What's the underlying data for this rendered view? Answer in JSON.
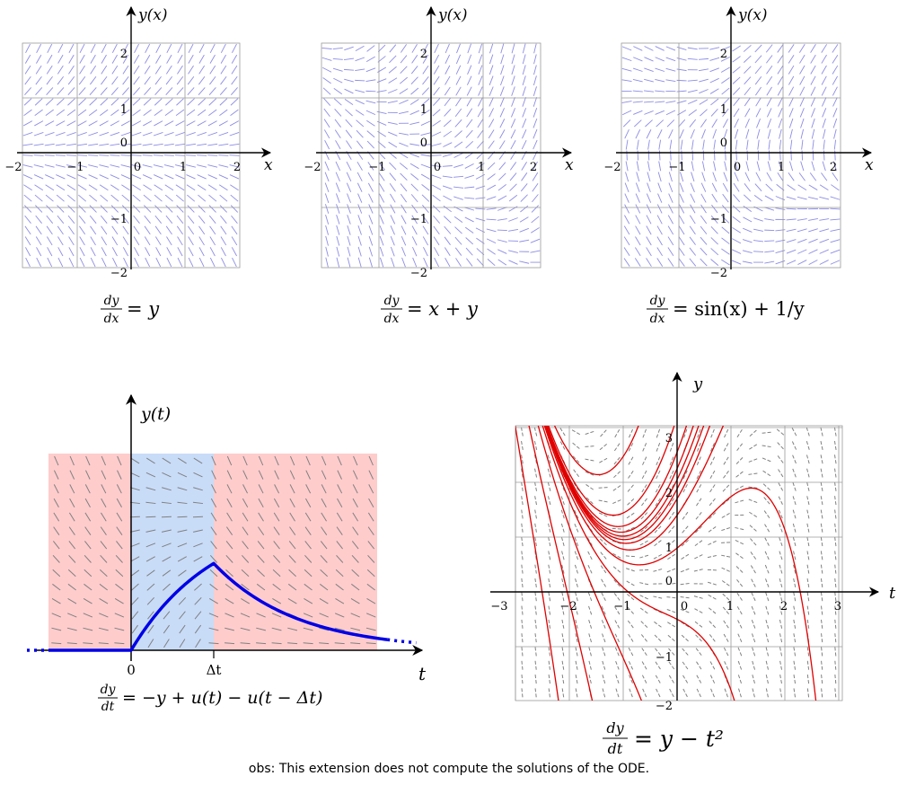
{
  "note": "obs: This extension does not compute the solutions of the ODE.",
  "colors": {
    "slope_blue": "#8c8ce6",
    "grid": "#9a9a9a",
    "slope_gray": "#808080",
    "solution_red": "#e00000",
    "solution_blue": "#0000e6",
    "shade_red": "#ffcccc",
    "shade_blue": "#c8dcf8"
  },
  "panels": [
    {
      "id": "panel-1",
      "equation": {
        "num": "dy",
        "den": "dx",
        "rhs": "= y"
      },
      "x_label": "x",
      "y_label": "y(x)",
      "x_ticks": [
        "−2",
        "−1",
        "0",
        "1",
        "2"
      ],
      "y_ticks": [
        "−2",
        "−1",
        "0",
        "1",
        "2"
      ]
    },
    {
      "id": "panel-2",
      "equation": {
        "num": "dy",
        "den": "dx",
        "rhs": "= x + y"
      },
      "x_label": "x",
      "y_label": "y(x)",
      "x_ticks": [
        "−2",
        "−1",
        "0",
        "1",
        "2"
      ],
      "y_ticks": [
        "−2",
        "−1",
        "0",
        "1",
        "2"
      ]
    },
    {
      "id": "panel-3",
      "equation": {
        "num": "dy",
        "den": "dx",
        "rhs": "= sin(x) + 1/y"
      },
      "x_label": "x",
      "y_label": "y(x)",
      "x_ticks": [
        "−2",
        "−1",
        "0",
        "1",
        "2"
      ],
      "y_ticks": [
        "−2",
        "−1",
        "0",
        "1",
        "2"
      ]
    }
  ],
  "pulse_panel": {
    "equation": {
      "num": "dy",
      "den": "dt",
      "rhs": "= −y + u(t) − u(t − Δt)"
    },
    "t_label": "t",
    "y_label": "y(t)",
    "tick_zero": "0",
    "tick_dt": "Δt"
  },
  "quad_panel": {
    "equation": {
      "num": "dy",
      "den": "dt",
      "rhs": "= y − t²"
    },
    "t_label": "t",
    "y_label": "y",
    "x_ticks": [
      "−3",
      "−2",
      "−1",
      "0",
      "1",
      "2",
      "3"
    ],
    "y_ticks": [
      "−2",
      "−1",
      "0",
      "1",
      "2",
      "3"
    ]
  }
}
